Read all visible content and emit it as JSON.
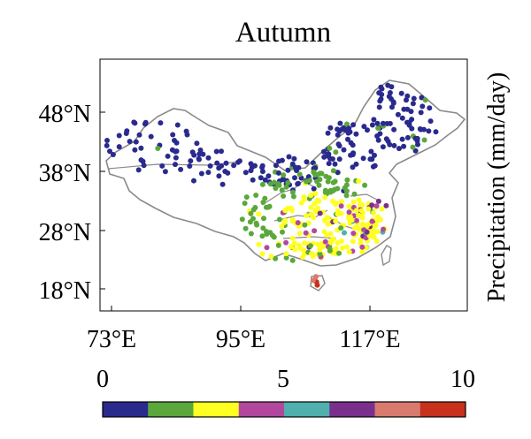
{
  "title": "Autumn",
  "colorbar_label": "Precipitation (mm/day)",
  "y_ticks": [
    {
      "value": 48,
      "label": "48°N"
    },
    {
      "value": 38,
      "label": "38°N"
    },
    {
      "value": 28,
      "label": "28°N"
    },
    {
      "value": 18,
      "label": "18°N"
    }
  ],
  "x_ticks": [
    {
      "value": 73,
      "label": "73°E"
    },
    {
      "value": 95,
      "label": "95°E"
    },
    {
      "value": 117,
      "label": "117°E"
    }
  ],
  "colorbar": {
    "ticks": [
      {
        "value": 0,
        "label": "0"
      },
      {
        "value": 5,
        "label": "5"
      },
      {
        "value": 10,
        "label": "10"
      }
    ],
    "range": [
      0,
      10
    ],
    "colors": [
      "#2a2a8e",
      "#5aa83b",
      "#ffff21",
      "#b2489e",
      "#4fb0ae",
      "#7a2f8c",
      "#d97a6e",
      "#c8311c"
    ]
  },
  "map": {
    "lon_range": [
      72,
      136
    ],
    "lat_range": [
      15,
      55
    ]
  }
}
